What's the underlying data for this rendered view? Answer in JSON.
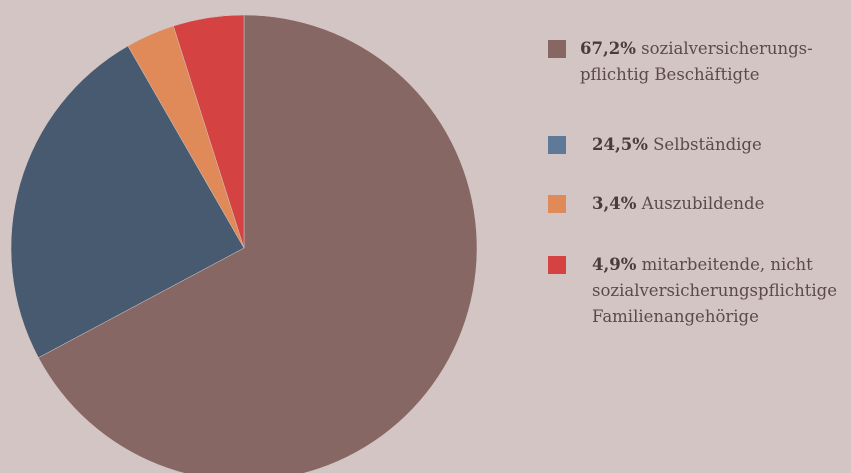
{
  "chart_data": {
    "type": "pie",
    "slices": [
      {
        "pct_label": "67,2",
        "unit": "%",
        "text": "sozialversicherungs-\npflichtig Beschäftigte",
        "value": 67.2,
        "color": "#876764"
      },
      {
        "pct_label": "24,5",
        "unit": "%",
        "text": "Selbständige",
        "value": 24.5,
        "color": "#475a70"
      },
      {
        "pct_label": "3,4",
        "unit": "%",
        "text": "Auszubildende",
        "value": 3.4,
        "color": "#e08a5a"
      },
      {
        "pct_label": "4,9",
        "unit": "%",
        "text": "mitarbeitende, nicht\nsozialversicherungspflichtige\nFamilienangehörige",
        "value": 4.9,
        "color": "#d44242"
      }
    ],
    "legend_position": "right",
    "legend_swatch_colors": [
      "#876764",
      "#5e7a98",
      "#e08a5a",
      "#d44242"
    ]
  }
}
